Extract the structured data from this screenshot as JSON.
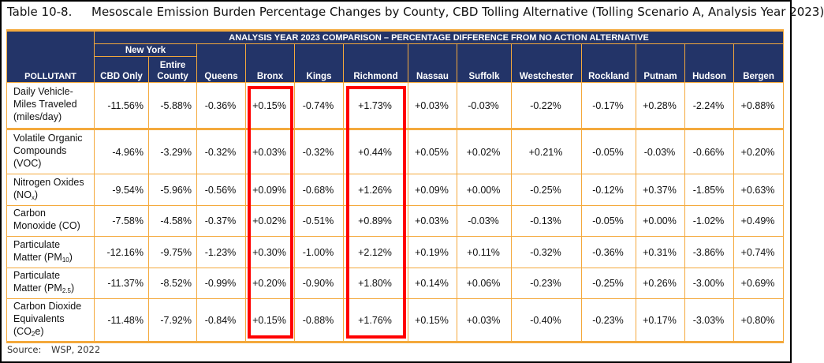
{
  "caption": {
    "number": "Table 10-8.",
    "title": "Mesoscale Emission Burden Percentage Changes by County, CBD Tolling Alternative (Tolling Scenario A, Analysis Year 2023)"
  },
  "header": {
    "pollutant": "POLLUTANT",
    "comparison": "ANALYSIS YEAR 2023 COMPARISON – PERCENTAGE DIFFERENCE FROM NO ACTION ALTERNATIVE",
    "new_york": "New York",
    "columns": [
      "CBD Only",
      "Entire County",
      "Queens",
      "Bronx",
      "Kings",
      "Richmond",
      "Nassau",
      "Suffolk",
      "Westchester",
      "Rockland",
      "Putnam",
      "Hudson",
      "Bergen"
    ]
  },
  "rows": [
    {
      "label": {
        "pre": "Daily Vehicle-Miles Traveled (miles/day)",
        "sub": "",
        "post": ""
      },
      "values": [
        "-11.56%",
        "-5.88%",
        "-0.36%",
        "+0.15%",
        "-0.74%",
        "+1.73%",
        "+0.03%",
        "-0.03%",
        "-0.22%",
        "-0.17%",
        "+0.28%",
        "-2.24%",
        "+0.88%"
      ]
    },
    {
      "label": {
        "pre": "Volatile Organic Compounds (VOC)",
        "sub": "",
        "post": ""
      },
      "values": [
        "-4.96%",
        "-3.29%",
        "-0.32%",
        "+0.03%",
        "-0.32%",
        "+0.44%",
        "+0.05%",
        "+0.02%",
        "+0.21%",
        "-0.05%",
        "-0.03%",
        "-0.66%",
        "+0.20%"
      ]
    },
    {
      "label": {
        "pre": "Nitrogen Oxides (NO",
        "sub": "x",
        "post": ")"
      },
      "values": [
        "-9.54%",
        "-5.96%",
        "-0.56%",
        "+0.09%",
        "-0.68%",
        "+1.26%",
        "+0.09%",
        "+0.00%",
        "-0.25%",
        "-0.12%",
        "+0.37%",
        "-1.85%",
        "+0.63%"
      ]
    },
    {
      "label": {
        "pre": "Carbon Monoxide (CO)",
        "sub": "",
        "post": ""
      },
      "values": [
        "-7.58%",
        "-4.58%",
        "-0.37%",
        "+0.02%",
        "-0.51%",
        "+0.89%",
        "+0.03%",
        "-0.03%",
        "-0.13%",
        "-0.05%",
        "+0.00%",
        "-1.02%",
        "+0.49%"
      ]
    },
    {
      "label": {
        "pre": "Particulate Matter (PM",
        "sub": "10",
        "post": ")"
      },
      "values": [
        "-12.16%",
        "-9.75%",
        "-1.23%",
        "+0.30%",
        "-1.00%",
        "+2.12%",
        "+0.19%",
        "+0.11%",
        "-0.32%",
        "-0.36%",
        "+0.31%",
        "-3.86%",
        "+0.74%"
      ]
    },
    {
      "label": {
        "pre": "Particulate Matter (PM",
        "sub": "2.5",
        "post": ")"
      },
      "values": [
        "-11.37%",
        "-8.52%",
        "-0.99%",
        "+0.20%",
        "-0.90%",
        "+1.80%",
        "+0.14%",
        "+0.06%",
        "-0.23%",
        "-0.25%",
        "+0.26%",
        "-3.00%",
        "+0.69%"
      ]
    },
    {
      "label": {
        "pre": "Carbon Dioxide Equivalents (CO",
        "sub": "2",
        "post": "e)"
      },
      "values": [
        "-11.48%",
        "-7.92%",
        "-0.84%",
        "+0.15%",
        "-0.88%",
        "+1.76%",
        "+0.15%",
        "+0.03%",
        "-0.40%",
        "-0.23%",
        "+0.17%",
        "-3.03%",
        "+0.80%"
      ]
    }
  ],
  "highlighted_columns": [
    "Bronx",
    "Richmond"
  ],
  "source": {
    "label": "Source:",
    "value": "WSP, 2022"
  },
  "colors": {
    "header_bg": "#233468",
    "grid": "#f4a93c",
    "highlight": "#ff0000"
  }
}
